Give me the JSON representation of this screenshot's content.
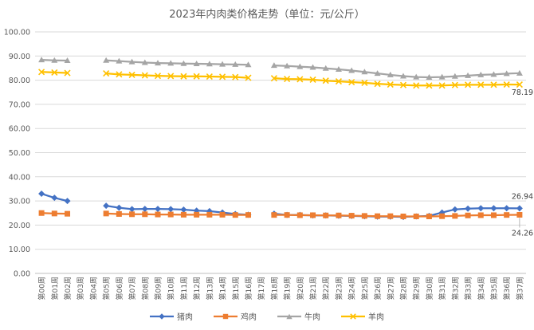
{
  "chart_data": {
    "type": "line",
    "title": "2023年内肉类价格走势（单位：元/公斤）",
    "xlabel": "",
    "ylabel": "",
    "ylim": [
      0,
      100
    ],
    "yticks": [
      "0.00",
      "10.00",
      "20.00",
      "30.00",
      "40.00",
      "50.00",
      "60.00",
      "70.00",
      "80.00",
      "90.00",
      "100.00"
    ],
    "grid": true,
    "legend_position": "bottom",
    "categories": [
      "第00周",
      "第01周",
      "第02周",
      "第03周",
      "第04周",
      "第05周",
      "第06周",
      "第07周",
      "第08周",
      "第09周",
      "第10周",
      "第11周",
      "第12周",
      "第13周",
      "第14周",
      "第15周",
      "第16周",
      "第17周",
      "第18周",
      "第19周",
      "第20周",
      "第21周",
      "第22周",
      "第23周",
      "第24周",
      "第25周",
      "第26周",
      "第27周",
      "第28周",
      "第29周",
      "第30周",
      "第31周",
      "第32周",
      "第33周",
      "第34周",
      "第35周",
      "第36周",
      "第37周"
    ],
    "series": [
      {
        "name": "猪肉",
        "color": "#4472C4",
        "marker": "diamond",
        "values": [
          33.0,
          31.3,
          30.0,
          null,
          null,
          28.0,
          27.2,
          26.6,
          26.7,
          26.7,
          26.6,
          26.4,
          26.0,
          25.8,
          25.2,
          24.6,
          24.3,
          null,
          24.7,
          24.2,
          24.2,
          24.0,
          24.0,
          23.9,
          23.8,
          23.7,
          23.5,
          23.5,
          23.4,
          23.6,
          23.8,
          25.2,
          26.5,
          26.8,
          27.0,
          27.0,
          27.0,
          26.94
        ]
      },
      {
        "name": "鸡肉",
        "color": "#ED7D31",
        "marker": "square",
        "values": [
          25.0,
          24.8,
          24.7,
          null,
          null,
          24.8,
          24.6,
          24.5,
          24.5,
          24.4,
          24.4,
          24.3,
          24.3,
          24.3,
          24.3,
          24.2,
          24.2,
          null,
          24.2,
          24.2,
          24.1,
          24.1,
          24.0,
          24.0,
          23.9,
          23.8,
          23.7,
          23.7,
          23.6,
          23.6,
          23.6,
          23.7,
          23.8,
          24.0,
          24.1,
          24.1,
          24.2,
          24.26
        ]
      },
      {
        "name": "牛肉",
        "color": "#A5A5A5",
        "marker": "triangle",
        "values": [
          88.4,
          88.2,
          88.1,
          null,
          null,
          88.2,
          87.9,
          87.6,
          87.3,
          87.1,
          87.0,
          86.9,
          86.8,
          86.7,
          86.6,
          86.5,
          86.4,
          null,
          86.1,
          85.9,
          85.6,
          85.3,
          84.9,
          84.5,
          84.0,
          83.4,
          82.8,
          82.2,
          81.7,
          81.3,
          81.2,
          81.3,
          81.6,
          81.9,
          82.2,
          82.4,
          82.7,
          82.9
        ]
      },
      {
        "name": "羊肉",
        "color": "#FFC000",
        "marker": "cross",
        "values": [
          83.4,
          83.2,
          83.0,
          null,
          null,
          82.8,
          82.4,
          82.2,
          82.0,
          81.8,
          81.7,
          81.6,
          81.6,
          81.5,
          81.4,
          81.3,
          81.0,
          null,
          80.8,
          80.5,
          80.4,
          80.2,
          79.8,
          79.5,
          79.2,
          78.9,
          78.5,
          78.2,
          78.0,
          77.8,
          77.8,
          77.8,
          78.0,
          78.1,
          78.1,
          78.1,
          78.2,
          78.19
        ]
      }
    ],
    "data_labels": [
      {
        "text": "78.19",
        "series": "羊肉",
        "index": 37
      },
      {
        "text": "26.94",
        "series": "猪肉",
        "index": 37
      },
      {
        "text": "24.26",
        "series": "鸡肉",
        "index": 37
      }
    ]
  }
}
